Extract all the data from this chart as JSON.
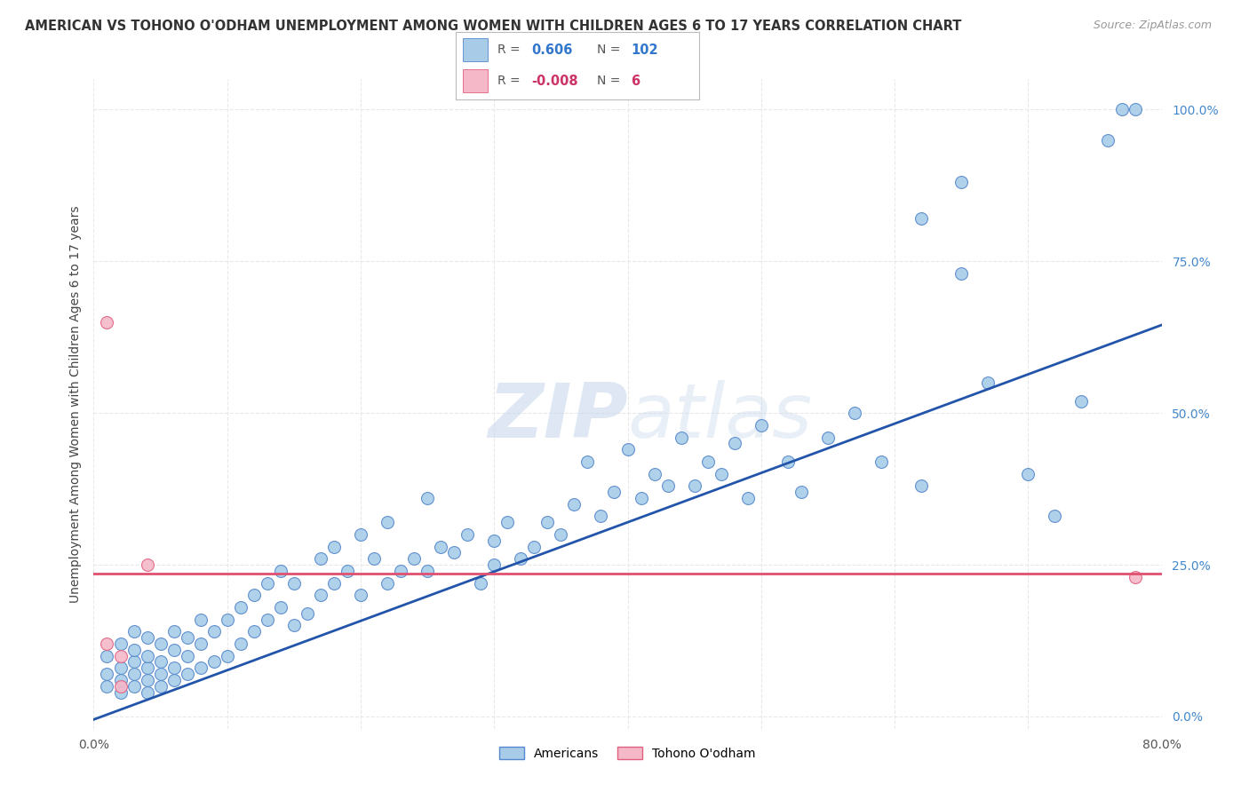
{
  "title": "AMERICAN VS TOHONO O'ODHAM UNEMPLOYMENT AMONG WOMEN WITH CHILDREN AGES 6 TO 17 YEARS CORRELATION CHART",
  "source": "Source: ZipAtlas.com",
  "ylabel": "Unemployment Among Women with Children Ages 6 to 17 years",
  "xlim": [
    0.0,
    0.8
  ],
  "ylim": [
    -0.02,
    1.08
  ],
  "plot_ylim": [
    0.0,
    1.0
  ],
  "xticks": [
    0.0,
    0.1,
    0.2,
    0.3,
    0.4,
    0.5,
    0.6,
    0.7,
    0.8
  ],
  "yticks_right": [
    0.0,
    0.25,
    0.5,
    0.75,
    1.0
  ],
  "legend_blue_R": "0.606",
  "legend_blue_N": "102",
  "legend_pink_R": "-0.008",
  "legend_pink_N": "6",
  "blue_color": "#a8cce8",
  "blue_edge": "#5588cc",
  "pink_color": "#f5b8c8",
  "pink_edge": "#e06080",
  "line_blue_color": "#2255aa",
  "line_pink_color": "#e05070",
  "watermark_color": "#d8e4f0",
  "background_color": "#ffffff",
  "grid_color": "#e8e8e8",
  "americans_label": "Americans",
  "tohono_label": "Tohono O'odham",
  "blue_line_x0": 0.0,
  "blue_line_y0": -0.005,
  "blue_line_x1": 0.8,
  "blue_line_y1": 0.645,
  "pink_line_y": 0.235,
  "americans_x": [
    0.01,
    0.01,
    0.01,
    0.02,
    0.02,
    0.02,
    0.02,
    0.03,
    0.03,
    0.03,
    0.03,
    0.03,
    0.04,
    0.04,
    0.04,
    0.04,
    0.04,
    0.05,
    0.05,
    0.05,
    0.05,
    0.06,
    0.06,
    0.06,
    0.06,
    0.07,
    0.07,
    0.07,
    0.08,
    0.08,
    0.08,
    0.09,
    0.09,
    0.1,
    0.1,
    0.11,
    0.11,
    0.12,
    0.12,
    0.13,
    0.13,
    0.14,
    0.14,
    0.15,
    0.15,
    0.16,
    0.17,
    0.17,
    0.18,
    0.18,
    0.19,
    0.2,
    0.2,
    0.21,
    0.22,
    0.22,
    0.23,
    0.24,
    0.25,
    0.25,
    0.26,
    0.27,
    0.28,
    0.29,
    0.3,
    0.3,
    0.31,
    0.32,
    0.33,
    0.34,
    0.35,
    0.36,
    0.37,
    0.38,
    0.39,
    0.4,
    0.41,
    0.42,
    0.43,
    0.44,
    0.45,
    0.46,
    0.47,
    0.48,
    0.49,
    0.5,
    0.52,
    0.53,
    0.55,
    0.57,
    0.59,
    0.62,
    0.65,
    0.67,
    0.7,
    0.72,
    0.74,
    0.76,
    0.77,
    0.78,
    0.62,
    0.65
  ],
  "americans_y": [
    0.05,
    0.07,
    0.1,
    0.04,
    0.06,
    0.08,
    0.12,
    0.05,
    0.07,
    0.09,
    0.11,
    0.14,
    0.04,
    0.06,
    0.08,
    0.1,
    0.13,
    0.05,
    0.07,
    0.09,
    0.12,
    0.06,
    0.08,
    0.11,
    0.14,
    0.07,
    0.1,
    0.13,
    0.08,
    0.12,
    0.16,
    0.09,
    0.14,
    0.1,
    0.16,
    0.12,
    0.18,
    0.14,
    0.2,
    0.16,
    0.22,
    0.18,
    0.24,
    0.15,
    0.22,
    0.17,
    0.2,
    0.26,
    0.22,
    0.28,
    0.24,
    0.2,
    0.3,
    0.26,
    0.22,
    0.32,
    0.24,
    0.26,
    0.24,
    0.36,
    0.28,
    0.27,
    0.3,
    0.22,
    0.29,
    0.25,
    0.32,
    0.26,
    0.28,
    0.32,
    0.3,
    0.35,
    0.42,
    0.33,
    0.37,
    0.44,
    0.36,
    0.4,
    0.38,
    0.46,
    0.38,
    0.42,
    0.4,
    0.45,
    0.36,
    0.48,
    0.42,
    0.37,
    0.46,
    0.5,
    0.42,
    0.38,
    0.73,
    0.55,
    0.4,
    0.33,
    0.52,
    0.95,
    1.0,
    1.0,
    0.82,
    0.88
  ],
  "tohono_x": [
    0.01,
    0.01,
    0.02,
    0.02,
    0.04,
    0.78
  ],
  "tohono_y": [
    0.65,
    0.12,
    0.05,
    0.1,
    0.25,
    0.23
  ]
}
